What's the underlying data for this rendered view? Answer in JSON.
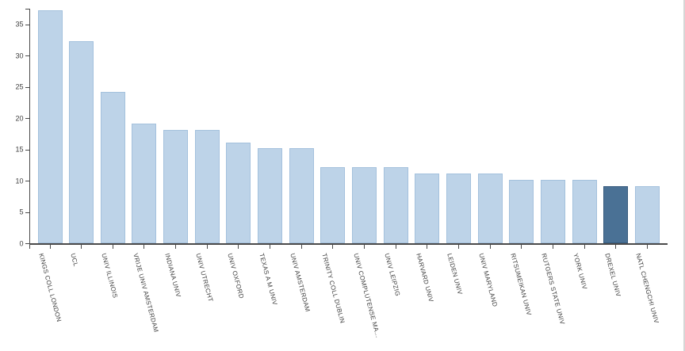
{
  "chart_data": {
    "type": "bar",
    "title": "",
    "xlabel": "",
    "ylabel": "",
    "categories": [
      "KINGS COLL LONDON",
      "UCL",
      "UNIV ILLINOIS",
      "VRIJE UNIV AMSTERDAM",
      "INDIANA UNIV",
      "UNIV UTRECHT",
      "UNIV OXFORD",
      "TEXAS A M UNIV",
      "UNIV AMSTERDAM",
      "TRINITY COLL DUBLIN",
      "UNIV COMPLUTENSE MA...",
      "UNIV LEIPZIG",
      "HARVARD UNIV",
      "LEIDEN UNIV",
      "UNIV MARYLAND",
      "RITSUMEIKAN UNIV",
      "RUTGERS STATE UNIV",
      "YORK UNIV",
      "DREXEL UNIV",
      "NATL CHENGCHI UNIV"
    ],
    "values": [
      37.3,
      32.3,
      24.3,
      19.2,
      18.2,
      18.2,
      16.2,
      15.2,
      15.2,
      12.2,
      12.2,
      12.2,
      11.2,
      11.2,
      11.2,
      10.2,
      10.2,
      10.2,
      9.2,
      9.2
    ],
    "highlight_index": 18,
    "highlight_category": "DREXEL UNIV",
    "ylim": [
      0,
      37.5
    ],
    "ytick_step": 5,
    "ytick_labels": [
      "0",
      "5",
      "10",
      "15",
      "20",
      "25",
      "30",
      "35"
    ],
    "grid": "off",
    "legend": "none",
    "colors": {
      "bar_fill": "#bdd3e8",
      "bar_border": "#a4c1dd",
      "highlight_fill": "#4a7195",
      "highlight_border": "#365a7d",
      "axis": "#4a4a4a",
      "tick_label_text": "#404040",
      "frame_border": "#d6d6d6",
      "background": "#ffffff"
    }
  }
}
